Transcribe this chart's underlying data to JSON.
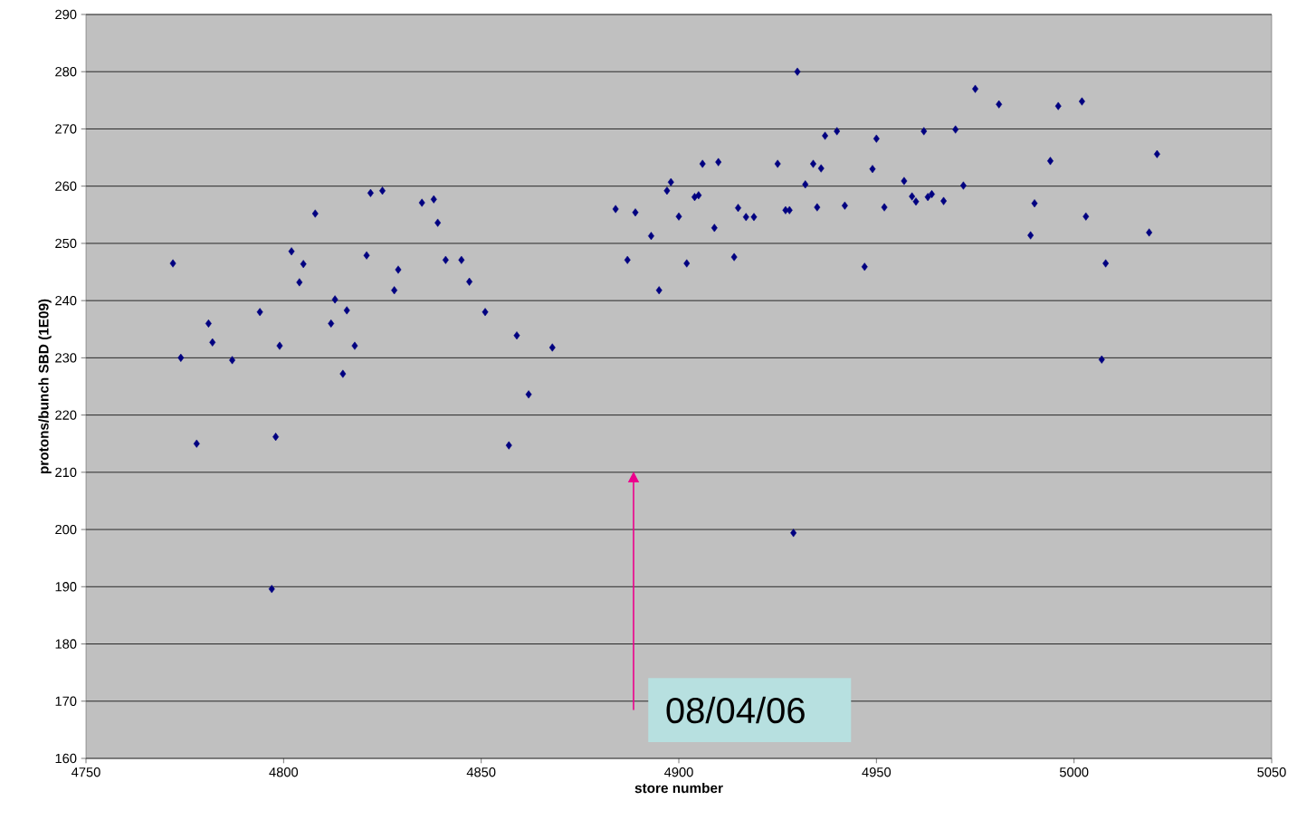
{
  "chart_data": {
    "type": "scatter",
    "xlabel": "store number",
    "ylabel": "protons/bunch SBD (1E09)",
    "x": [
      4772,
      4774,
      4778,
      4781,
      4782,
      4787,
      4794,
      4797,
      4798,
      4799,
      4802,
      4804,
      4805,
      4808,
      4812,
      4813,
      4815,
      4816,
      4818,
      4821,
      4822,
      4825,
      4828,
      4829,
      4835,
      4838,
      4839,
      4841,
      4845,
      4847,
      4851,
      4857,
      4859,
      4862,
      4868,
      4884,
      4887,
      4889,
      4893,
      4895,
      4897,
      4898,
      4900,
      4902,
      4904,
      4905,
      4906,
      4909,
      4910,
      4914,
      4915,
      4917,
      4919,
      4925,
      4927,
      4928,
      4929,
      4930,
      4932,
      4934,
      4935,
      4936,
      4937,
      4940,
      4942,
      4947,
      4949,
      4950,
      4952,
      4957,
      4959,
      4960,
      4962,
      4963,
      4964,
      4967,
      4970,
      4972,
      4975,
      4981,
      4989,
      4990,
      4994,
      4996,
      5002,
      5003,
      5007,
      5008,
      5019,
      5021
    ],
    "values": [
      246.5,
      230,
      215,
      236,
      232.7,
      229.6,
      238,
      189.6,
      216.2,
      232.1,
      248.6,
      243.2,
      246.4,
      255.2,
      236,
      240.2,
      227.2,
      238.3,
      232.1,
      247.9,
      258.8,
      259.2,
      241.8,
      245.4,
      257.1,
      257.7,
      253.6,
      247.1,
      247.1,
      243.3,
      238,
      214.7,
      233.9,
      223.6,
      231.8,
      256,
      247.1,
      255.4,
      251.3,
      241.8,
      259.2,
      260.7,
      254.7,
      246.5,
      258.1,
      258.4,
      263.9,
      252.7,
      264.2,
      247.6,
      256.2,
      254.6,
      254.6,
      263.9,
      255.8,
      255.8,
      199.4,
      280,
      260.3,
      263.9,
      256.3,
      263.1,
      268.8,
      269.6,
      256.6,
      245.9,
      263,
      268.3,
      256.3,
      260.9,
      258.2,
      257.3,
      269.6,
      258.1,
      258.6,
      257.4,
      269.9,
      260.1,
      277,
      274.3,
      251.4,
      257,
      264.4,
      274,
      274.8,
      254.7,
      229.7,
      246.5,
      251.9,
      265.6
    ],
    "color": "#000080",
    "marker": "diamond",
    "xlim": [
      4750,
      5050
    ],
    "xticks": [
      4750,
      4800,
      4850,
      4900,
      4950,
      5000,
      5050
    ],
    "ylim": [
      160,
      290
    ],
    "yticks": [
      160,
      170,
      180,
      190,
      200,
      210,
      220,
      230,
      240,
      250,
      260,
      270,
      280,
      290
    ],
    "grid": "y",
    "annotations": [
      "08/04/06"
    ]
  }
}
